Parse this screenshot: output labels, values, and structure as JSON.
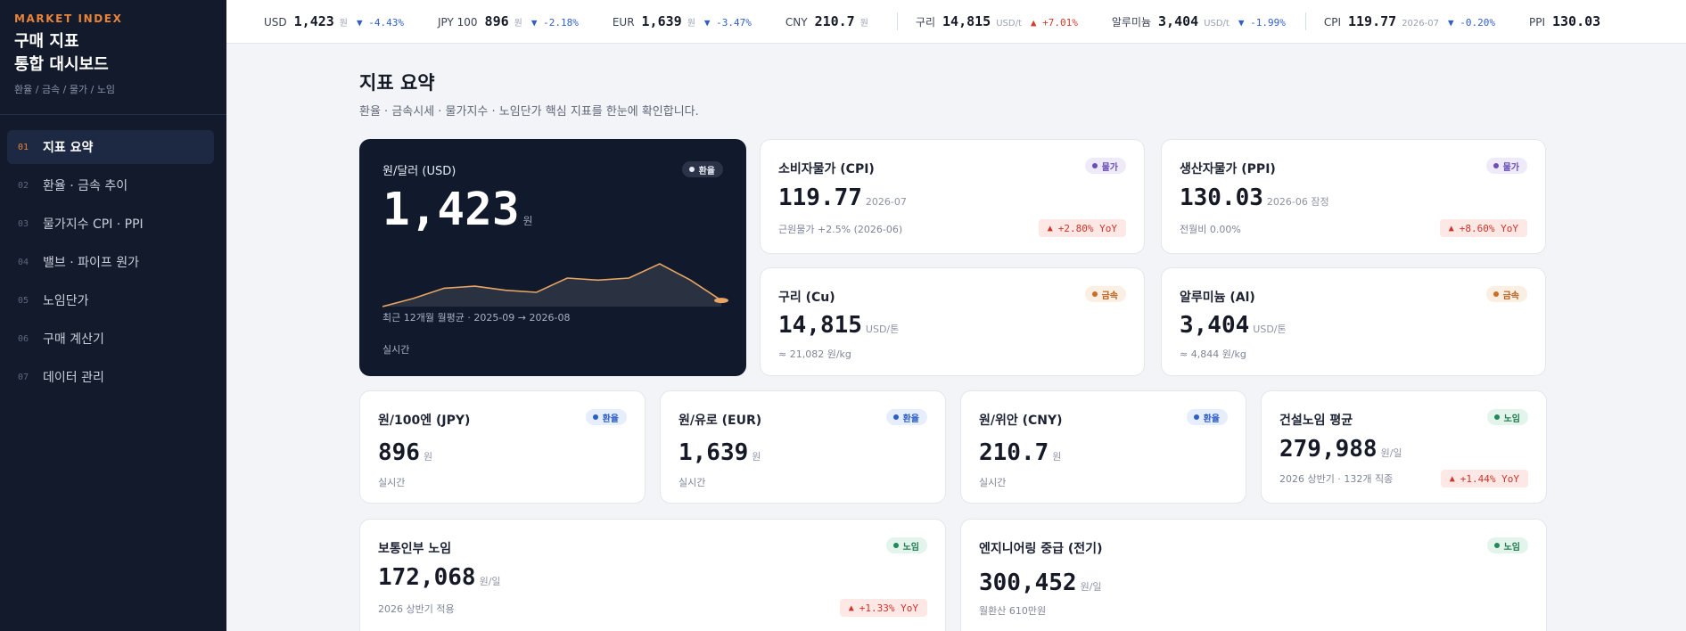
{
  "sidebar": {
    "kicker": "MARKET INDEX",
    "title_line1": "구매 지표",
    "title_line2": "통합 대시보드",
    "subtitle": "환율 / 금속 / 물가 / 노임",
    "items": [
      {
        "num": "01",
        "label": "지표 요약",
        "active": true
      },
      {
        "num": "02",
        "label": "환율 · 금속 추이"
      },
      {
        "num": "03",
        "label": "물가지수 CPI · PPI"
      },
      {
        "num": "04",
        "label": "밸브 · 파이프 원가"
      },
      {
        "num": "05",
        "label": "노임단가"
      },
      {
        "num": "06",
        "label": "구매 계산기"
      },
      {
        "num": "07",
        "label": "데이터 관리"
      }
    ]
  },
  "ticker": [
    {
      "code": "USD",
      "value": "1,423",
      "unit": "원",
      "change": "▼ -4.43%",
      "dir": "down"
    },
    {
      "code": "JPY 100",
      "value": "896",
      "unit": "원",
      "change": "▼ -2.18%",
      "dir": "down"
    },
    {
      "code": "EUR",
      "value": "1,639",
      "unit": "원",
      "change": "▼ -3.47%",
      "dir": "down"
    },
    {
      "code": "CNY",
      "value": "210.7",
      "unit": "원",
      "change": "",
      "dir": ""
    },
    {
      "code": "구리",
      "value": "14,815",
      "unit": "USD/t",
      "change": "▲ +7.01%",
      "dir": "up"
    },
    {
      "code": "알루미늄",
      "value": "3,404",
      "unit": "USD/t",
      "change": "▼ -1.99%",
      "dir": "down"
    },
    {
      "code": "CPI",
      "value": "119.77",
      "unit": "2026-07",
      "change": "▼ -0.20%",
      "dir": "down"
    },
    {
      "code": "PPI",
      "value": "130.03",
      "unit": "",
      "change": "",
      "dir": ""
    }
  ],
  "page": {
    "title": "지표 요약",
    "subtitle": "환율 · 금속시세 · 물가지수 · 노임단가 핵심 지표를 한눈에 확인합니다."
  },
  "hero": {
    "title": "원/달러 (USD)",
    "badge": "환율",
    "value": "1,423",
    "unit": "원",
    "note": "최근 12개월 월평균 · 2025-09 → 2026-08",
    "live": "실시간",
    "sparkline": [
      1466,
      1470,
      1475,
      1476,
      1474,
      1473,
      1480,
      1479,
      1480,
      1487,
      1479,
      1469
    ]
  },
  "cards": {
    "cpi": {
      "title": "소비자물가 (CPI)",
      "badge": "물가",
      "value": "119.77",
      "unit": "2026-07",
      "note": "근원물가 +2.5% (2026-06)",
      "change": "+2.80% YoY"
    },
    "ppi": {
      "title": "생산자물가 (PPI)",
      "badge": "물가",
      "value": "130.03",
      "unit": "2026-06 잠정",
      "note": "전월비 0.00%",
      "change": "+8.60% YoY"
    },
    "cu": {
      "title": "구리 (Cu)",
      "badge": "금속",
      "value": "14,815",
      "unit": "USD/톤",
      "note": "≈ 21,082 원/kg"
    },
    "al": {
      "title": "알루미늄 (Al)",
      "badge": "금속",
      "value": "3,404",
      "unit": "USD/톤",
      "note": "≈ 4,844 원/kg"
    },
    "jpy": {
      "title": "원/100엔 (JPY)",
      "badge": "환율",
      "value": "896",
      "unit": "원",
      "note": "실시간"
    },
    "eur": {
      "title": "원/유로 (EUR)",
      "badge": "환율",
      "value": "1,639",
      "unit": "원",
      "note": "실시간"
    },
    "cny": {
      "title": "원/위안 (CNY)",
      "badge": "환율",
      "value": "210.7",
      "unit": "원",
      "note": "실시간"
    },
    "labor_avg": {
      "title": "건설노임 평균",
      "badge": "노임",
      "value": "279,988",
      "unit": "원/일",
      "note": "2026 상반기 · 132개 직종",
      "change": "+1.44% YoY"
    },
    "labor_common": {
      "title": "보통인부 노임",
      "badge": "노임",
      "value": "172,068",
      "unit": "원/일",
      "note": "2026 상반기 적용",
      "change": "+1.33% YoY"
    },
    "labor_eng": {
      "title": "엔지니어링 중급 (전기)",
      "badge": "노임",
      "value": "300,452",
      "unit": "원/일",
      "note": "월환산 610만원"
    }
  }
}
